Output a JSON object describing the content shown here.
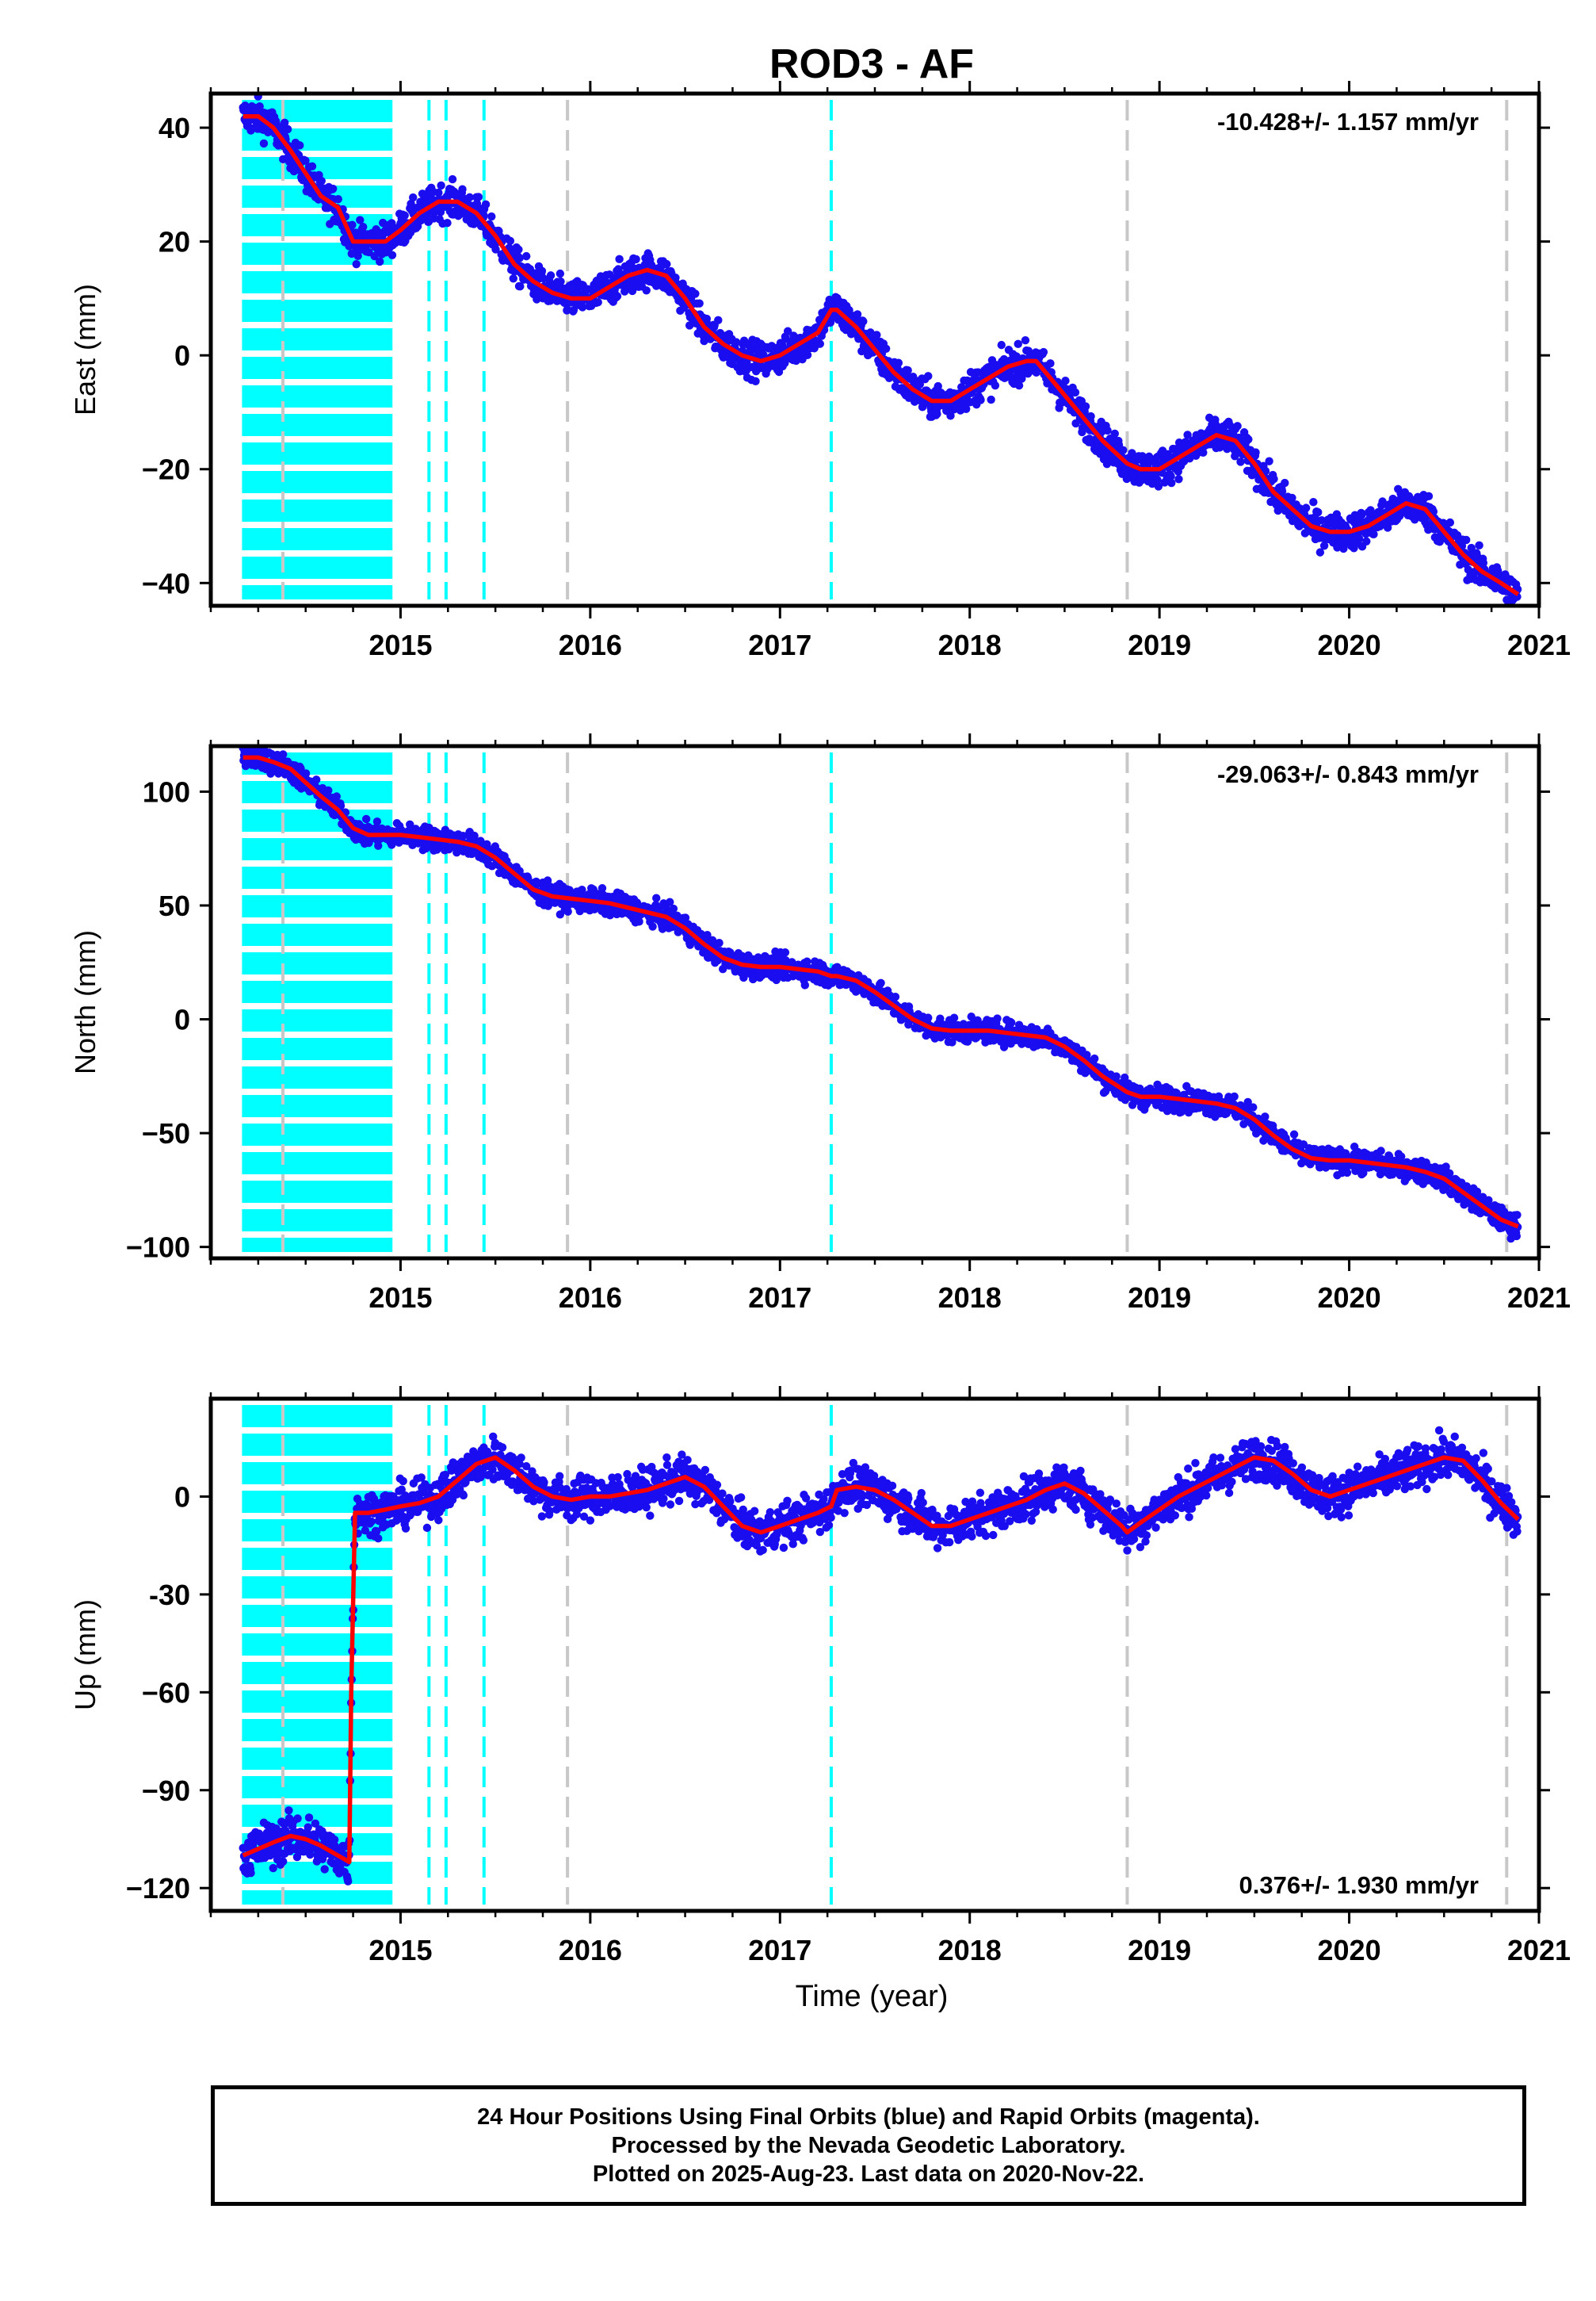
{
  "chart_data": [
    {
      "type": "scatter",
      "panel": "east",
      "title": "ROD3 - AF",
      "ylabel": "East (mm)",
      "rate_label": "-10.428+/- 1.157 mm/yr",
      "xlim": [
        2014.0,
        2021.0
      ],
      "ylim": [
        -44,
        46
      ],
      "yticks": [
        40,
        20,
        0,
        -20,
        -40
      ],
      "ytick_labels": [
        "40",
        "20",
        "0",
        "−20",
        "−40"
      ],
      "xticks": [
        2015,
        2016,
        2017,
        2018,
        2019,
        2020,
        2021
      ],
      "xtick_labels": [
        "2015",
        "2016",
        "2017",
        "2018",
        "2019",
        "2020",
        "2021"
      ],
      "series": [
        {
          "role": "daily positions",
          "color": "#1a0df0",
          "x": [
            2014.17,
            2014.25,
            2014.33,
            2014.42,
            2014.5,
            2014.58,
            2014.67,
            2014.75,
            2014.83,
            2014.92,
            2015.0,
            2015.1,
            2015.2,
            2015.3,
            2015.4,
            2015.5,
            2015.6,
            2015.7,
            2015.8,
            2015.9,
            2016.0,
            2016.1,
            2016.2,
            2016.3,
            2016.4,
            2016.5,
            2016.6,
            2016.7,
            2016.8,
            2016.9,
            2017.0,
            2017.1,
            2017.2,
            2017.27,
            2017.3,
            2017.4,
            2017.5,
            2017.6,
            2017.7,
            2017.8,
            2017.9,
            2018.0,
            2018.1,
            2018.2,
            2018.3,
            2018.35,
            2018.4,
            2018.5,
            2018.6,
            2018.7,
            2018.83,
            2018.9,
            2019.0,
            2019.1,
            2019.2,
            2019.3,
            2019.4,
            2019.5,
            2019.6,
            2019.7,
            2019.8,
            2019.9,
            2020.0,
            2020.1,
            2020.2,
            2020.3,
            2020.4,
            2020.5,
            2020.6,
            2020.7,
            2020.8,
            2020.89
          ],
          "y": [
            42,
            42,
            40,
            36,
            32,
            28,
            26,
            20,
            20,
            20,
            22,
            25,
            27,
            27,
            25,
            21,
            16,
            13,
            11,
            10,
            10,
            12,
            14,
            15,
            14,
            10,
            5,
            2,
            0,
            -1,
            0,
            2,
            4,
            8,
            8,
            5,
            1,
            -3,
            -6,
            -8,
            -8,
            -6,
            -4,
            -2,
            -1,
            -1,
            -3,
            -7,
            -11,
            -15,
            -19,
            -20,
            -20,
            -18,
            -16,
            -14,
            -15,
            -19,
            -24,
            -27,
            -30,
            -31,
            -31,
            -30,
            -28,
            -26,
            -27,
            -31,
            -35,
            -38,
            -40,
            -42
          ]
        },
        {
          "role": "trend model",
          "color": "#ff0000",
          "x": [
            2014.17,
            2014.25,
            2014.33,
            2014.42,
            2014.5,
            2014.58,
            2014.67,
            2014.75,
            2014.83,
            2014.92,
            2015.0,
            2015.1,
            2015.2,
            2015.3,
            2015.4,
            2015.5,
            2015.6,
            2015.7,
            2015.8,
            2015.9,
            2016.0,
            2016.1,
            2016.2,
            2016.3,
            2016.4,
            2016.5,
            2016.6,
            2016.7,
            2016.8,
            2016.9,
            2017.0,
            2017.1,
            2017.2,
            2017.27,
            2017.3,
            2017.4,
            2017.5,
            2017.6,
            2017.7,
            2017.8,
            2017.9,
            2018.0,
            2018.1,
            2018.2,
            2018.3,
            2018.35,
            2018.4,
            2018.5,
            2018.6,
            2018.7,
            2018.83,
            2018.9,
            2019.0,
            2019.1,
            2019.2,
            2019.3,
            2019.4,
            2019.5,
            2019.6,
            2019.7,
            2019.8,
            2019.9,
            2020.0,
            2020.1,
            2020.2,
            2020.3,
            2020.4,
            2020.5,
            2020.6,
            2020.7,
            2020.8,
            2020.89
          ],
          "y": [
            42,
            42,
            40,
            36,
            32,
            28,
            26,
            20,
            20,
            20,
            22,
            25,
            27,
            27,
            25,
            21,
            16,
            13,
            11,
            10,
            10,
            12,
            14,
            15,
            14,
            10,
            5,
            2,
            0,
            -1,
            0,
            2,
            4,
            8,
            8,
            5,
            1,
            -3,
            -6,
            -8,
            -8,
            -6,
            -4,
            -2,
            -1,
            -1,
            -3,
            -7,
            -11,
            -15,
            -19,
            -20,
            -20,
            -18,
            -16,
            -14,
            -15,
            -19,
            -24,
            -27,
            -30,
            -31,
            -31,
            -30,
            -28,
            -26,
            -27,
            -31,
            -35,
            -38,
            -40,
            -42
          ]
        }
      ]
    },
    {
      "type": "scatter",
      "panel": "north",
      "ylabel": "North (mm)",
      "rate_label": "-29.063+/- 0.843 mm/yr",
      "xlim": [
        2014.0,
        2021.0
      ],
      "ylim": [
        -105,
        120
      ],
      "yticks": [
        100,
        50,
        0,
        -50,
        -100
      ],
      "ytick_labels": [
        "100",
        "50",
        "0",
        "−50",
        "−100"
      ],
      "xticks": [
        2015,
        2016,
        2017,
        2018,
        2019,
        2020,
        2021
      ],
      "xtick_labels": [
        "2015",
        "2016",
        "2017",
        "2018",
        "2019",
        "2020",
        "2021"
      ],
      "series": [
        {
          "role": "daily positions",
          "color": "#1a0df0",
          "x": [
            2014.17,
            2014.25,
            2014.33,
            2014.42,
            2014.5,
            2014.58,
            2014.67,
            2014.75,
            2014.83,
            2014.92,
            2015.0,
            2015.1,
            2015.2,
            2015.3,
            2015.4,
            2015.5,
            2015.6,
            2015.7,
            2015.8,
            2015.9,
            2016.0,
            2016.1,
            2016.2,
            2016.3,
            2016.4,
            2016.5,
            2016.6,
            2016.7,
            2016.8,
            2016.9,
            2017.0,
            2017.1,
            2017.2,
            2017.27,
            2017.3,
            2017.4,
            2017.5,
            2017.6,
            2017.7,
            2017.8,
            2017.9,
            2018.0,
            2018.1,
            2018.2,
            2018.3,
            2018.4,
            2018.5,
            2018.6,
            2018.7,
            2018.83,
            2018.9,
            2019.0,
            2019.1,
            2019.2,
            2019.3,
            2019.4,
            2019.5,
            2019.6,
            2019.7,
            2019.8,
            2019.9,
            2020.0,
            2020.1,
            2020.2,
            2020.3,
            2020.4,
            2020.5,
            2020.6,
            2020.7,
            2020.8,
            2020.89
          ],
          "y": [
            115,
            115,
            113,
            110,
            104,
            98,
            92,
            84,
            81,
            81,
            81,
            80,
            79,
            78,
            76,
            71,
            64,
            57,
            54,
            53,
            52,
            51,
            49,
            47,
            45,
            40,
            33,
            27,
            24,
            23,
            23,
            22,
            21,
            19,
            19,
            17,
            12,
            6,
            0,
            -4,
            -5,
            -5,
            -5,
            -6,
            -7,
            -8,
            -12,
            -18,
            -25,
            -32,
            -34,
            -34,
            -35,
            -36,
            -37,
            -39,
            -44,
            -51,
            -57,
            -61,
            -62,
            -62,
            -63,
            -64,
            -65,
            -67,
            -70,
            -76,
            -82,
            -88,
            -91
          ]
        },
        {
          "role": "trend model",
          "color": "#ff0000",
          "x": [
            2014.17,
            2014.25,
            2014.33,
            2014.42,
            2014.5,
            2014.58,
            2014.67,
            2014.75,
            2014.83,
            2014.92,
            2015.0,
            2015.1,
            2015.2,
            2015.3,
            2015.4,
            2015.5,
            2015.6,
            2015.7,
            2015.8,
            2015.9,
            2016.0,
            2016.1,
            2016.2,
            2016.3,
            2016.4,
            2016.5,
            2016.6,
            2016.7,
            2016.8,
            2016.9,
            2017.0,
            2017.1,
            2017.2,
            2017.27,
            2017.3,
            2017.4,
            2017.5,
            2017.6,
            2017.7,
            2017.8,
            2017.9,
            2018.0,
            2018.1,
            2018.2,
            2018.3,
            2018.4,
            2018.5,
            2018.6,
            2018.7,
            2018.83,
            2018.9,
            2019.0,
            2019.1,
            2019.2,
            2019.3,
            2019.4,
            2019.5,
            2019.6,
            2019.7,
            2019.8,
            2019.9,
            2020.0,
            2020.1,
            2020.2,
            2020.3,
            2020.4,
            2020.5,
            2020.6,
            2020.7,
            2020.8,
            2020.89
          ],
          "y": [
            115,
            115,
            113,
            110,
            104,
            98,
            92,
            84,
            81,
            81,
            81,
            80,
            79,
            78,
            76,
            71,
            64,
            57,
            54,
            53,
            52,
            51,
            49,
            47,
            45,
            40,
            33,
            27,
            24,
            23,
            23,
            22,
            21,
            19,
            19,
            17,
            12,
            6,
            0,
            -4,
            -5,
            -5,
            -5,
            -6,
            -7,
            -8,
            -12,
            -18,
            -25,
            -32,
            -34,
            -34,
            -35,
            -36,
            -37,
            -39,
            -44,
            -51,
            -57,
            -61,
            -62,
            -62,
            -63,
            -64,
            -65,
            -67,
            -70,
            -76,
            -82,
            -88,
            -91
          ]
        }
      ]
    },
    {
      "type": "scatter",
      "panel": "up",
      "ylabel": "Up (mm)",
      "xlabel": "Time (year)",
      "rate_label": "0.376+/- 1.930 mm/yr",
      "xlim": [
        2014.0,
        2021.0
      ],
      "ylim": [
        -127,
        30
      ],
      "yticks": [
        0,
        -30,
        -60,
        -90,
        -120
      ],
      "ytick_labels": [
        "0",
        "-30",
        "−60",
        "−90",
        "−120"
      ],
      "xticks": [
        2015,
        2016,
        2017,
        2018,
        2019,
        2020,
        2021
      ],
      "xtick_labels": [
        "2015",
        "2016",
        "2017",
        "2018",
        "2019",
        "2020",
        "2021"
      ],
      "series": [
        {
          "role": "daily positions",
          "color": "#1a0df0",
          "x": [
            2014.17,
            2014.25,
            2014.33,
            2014.42,
            2014.5,
            2014.58,
            2014.67,
            2014.73,
            2014.74,
            2014.76,
            2014.83,
            2014.92,
            2015.0,
            2015.1,
            2015.2,
            2015.3,
            2015.4,
            2015.5,
            2015.6,
            2015.7,
            2015.8,
            2015.9,
            2016.0,
            2016.1,
            2016.2,
            2016.3,
            2016.4,
            2016.5,
            2016.6,
            2016.7,
            2016.8,
            2016.9,
            2017.0,
            2017.1,
            2017.2,
            2017.27,
            2017.3,
            2017.4,
            2017.5,
            2017.6,
            2017.7,
            2017.8,
            2017.9,
            2018.0,
            2018.1,
            2018.2,
            2018.3,
            2018.4,
            2018.5,
            2018.6,
            2018.7,
            2018.8,
            2018.83,
            2018.9,
            2019.0,
            2019.1,
            2019.2,
            2019.3,
            2019.4,
            2019.5,
            2019.6,
            2019.7,
            2019.8,
            2019.9,
            2020.0,
            2020.1,
            2020.2,
            2020.3,
            2020.4,
            2020.5,
            2020.6,
            2020.7,
            2020.8,
            2020.89
          ],
          "y": [
            -110,
            -108,
            -106,
            -104,
            -105,
            -107,
            -110,
            -112,
            -60,
            -5,
            -5,
            -4,
            -3,
            -2,
            0,
            5,
            10,
            12,
            8,
            3,
            0,
            -1,
            0,
            0,
            1,
            2,
            4,
            6,
            3,
            -3,
            -9,
            -11,
            -9,
            -7,
            -5,
            -3,
            2,
            3,
            2,
            -1,
            -5,
            -9,
            -9,
            -7,
            -5,
            -3,
            -1,
            2,
            4,
            1,
            -4,
            -9,
            -11,
            -8,
            -4,
            0,
            3,
            6,
            9,
            12,
            11,
            7,
            2,
            0,
            2,
            4,
            6,
            8,
            10,
            12,
            11,
            5,
            -2,
            -7
          ]
        },
        {
          "role": "trend model",
          "color": "#ff0000",
          "x": [
            2014.17,
            2014.25,
            2014.33,
            2014.42,
            2014.5,
            2014.58,
            2014.67,
            2014.73,
            2014.74,
            2014.76,
            2014.83,
            2014.92,
            2015.0,
            2015.1,
            2015.2,
            2015.3,
            2015.4,
            2015.5,
            2015.6,
            2015.7,
            2015.8,
            2015.9,
            2016.0,
            2016.1,
            2016.2,
            2016.3,
            2016.4,
            2016.5,
            2016.6,
            2016.7,
            2016.8,
            2016.9,
            2017.0,
            2017.1,
            2017.2,
            2017.27,
            2017.3,
            2017.4,
            2017.5,
            2017.6,
            2017.7,
            2017.8,
            2017.9,
            2018.0,
            2018.1,
            2018.2,
            2018.3,
            2018.4,
            2018.5,
            2018.6,
            2018.7,
            2018.8,
            2018.83,
            2018.9,
            2019.0,
            2019.1,
            2019.2,
            2019.3,
            2019.4,
            2019.5,
            2019.6,
            2019.7,
            2019.8,
            2019.9,
            2020.0,
            2020.1,
            2020.2,
            2020.3,
            2020.4,
            2020.5,
            2020.6,
            2020.7,
            2020.8,
            2020.89
          ],
          "y": [
            -110,
            -108,
            -106,
            -104,
            -105,
            -107,
            -110,
            -112,
            -60,
            -5,
            -5,
            -4,
            -3,
            -2,
            0,
            5,
            10,
            12,
            8,
            3,
            0,
            -1,
            0,
            0,
            1,
            2,
            4,
            6,
            3,
            -3,
            -9,
            -11,
            -9,
            -7,
            -5,
            -3,
            2,
            3,
            2,
            -1,
            -5,
            -9,
            -9,
            -7,
            -5,
            -3,
            -1,
            2,
            4,
            1,
            -4,
            -9,
            -11,
            -8,
            -4,
            0,
            3,
            6,
            9,
            12,
            11,
            7,
            2,
            0,
            2,
            4,
            6,
            8,
            10,
            12,
            11,
            5,
            -2,
            -7
          ]
        }
      ]
    }
  ],
  "event_lines": {
    "equipment_change_color": "#00ffff",
    "other_event_color": "#c8c8c8",
    "cyan_dense_band": [
      2014.17,
      2014.96
    ],
    "cyan_dates": [
      2015.15,
      2015.24,
      2015.44,
      2017.27
    ],
    "gray_dates": [
      2014.38,
      2015.88,
      2018.83,
      2020.83
    ]
  },
  "footer": {
    "line1": "24 Hour Positions Using Final Orbits (blue) and Rapid Orbits (magenta).",
    "line2": "Processed by the Nevada Geodetic Laboratory.",
    "line3": "Plotted on 2025-Aug-23. Last data on 2020-Nov-22."
  }
}
